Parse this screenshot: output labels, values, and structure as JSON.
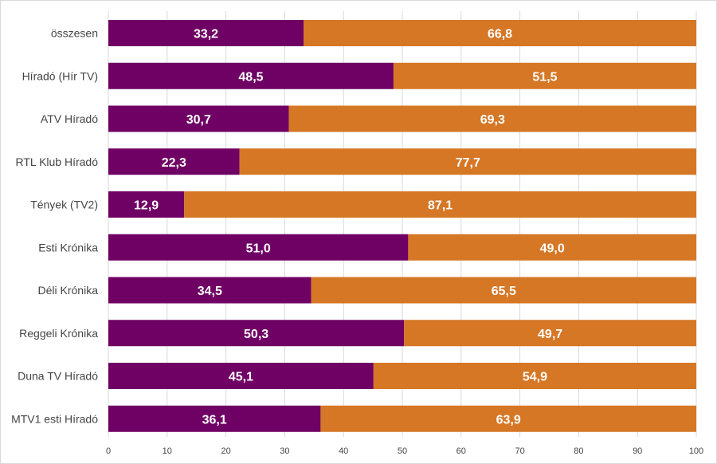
{
  "chart_data": {
    "type": "bar",
    "orientation": "horizontal",
    "stacked": true,
    "categories": [
      "összesen",
      "Híradó (Hír TV)",
      "ATV Híradó",
      "RTL Klub Híradó",
      "Tények (TV2)",
      "Esti Krónika",
      "Déli Krónika",
      "Reggeli Krónika",
      "Duna TV Híradó",
      "MTV1 esti Híradó"
    ],
    "series": [
      {
        "values": [
          33.2,
          48.5,
          30.7,
          22.3,
          12.9,
          51.0,
          34.5,
          50.3,
          45.1,
          36.1
        ],
        "labels": [
          "33,2",
          "48,5",
          "30,7",
          "22,3",
          "12,9",
          "51,0",
          "34,5",
          "50,3",
          "45,1",
          "36,1"
        ],
        "color": "#6f0064"
      },
      {
        "values": [
          66.8,
          51.5,
          69.3,
          77.7,
          87.1,
          49.0,
          65.5,
          49.7,
          54.9,
          63.9
        ],
        "labels": [
          "66,8",
          "51,5",
          "69,3",
          "77,7",
          "87,1",
          "49,0",
          "65,5",
          "49,7",
          "54,9",
          "63,9"
        ],
        "color": "#d57725"
      }
    ],
    "xlim": [
      0,
      100
    ],
    "xticks": [
      "0",
      "10",
      "20",
      "30",
      "40",
      "50",
      "60",
      "70",
      "80",
      "90",
      "100"
    ],
    "grid": true,
    "title": "",
    "xlabel": "",
    "ylabel": ""
  }
}
